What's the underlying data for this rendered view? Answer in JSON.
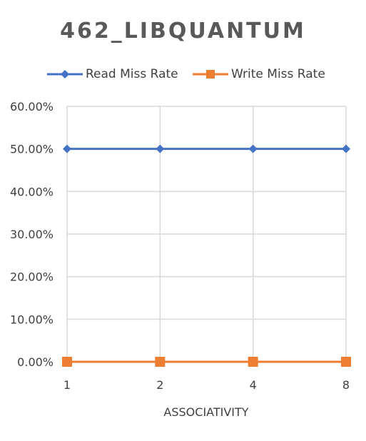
{
  "chart_data": {
    "type": "line",
    "title": "462_LIBQUANTUM",
    "xlabel": "ASSOCIATIVITY",
    "ylabel": "",
    "categories": [
      "1",
      "2",
      "4",
      "8"
    ],
    "y_ticks": [
      "0.00%",
      "10.00%",
      "20.00%",
      "30.00%",
      "40.00%",
      "50.00%",
      "60.00%"
    ],
    "ylim": [
      0,
      60
    ],
    "y_unit": "%",
    "grid": true,
    "legend_position": "top",
    "series": [
      {
        "name": "Read Miss Rate",
        "values": [
          50,
          50,
          50,
          50
        ],
        "color": "#4472C4",
        "marker": "diamond"
      },
      {
        "name": "Write Miss Rate",
        "values": [
          0,
          0,
          0,
          0
        ],
        "color": "#ED7D31",
        "marker": "square"
      }
    ]
  }
}
